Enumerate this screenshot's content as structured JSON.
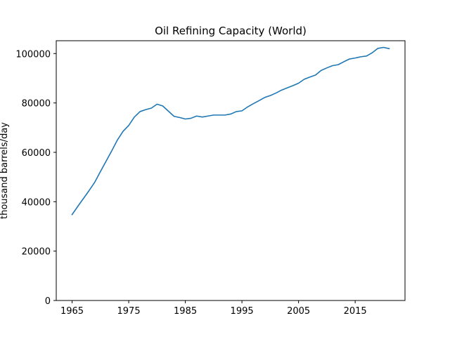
{
  "chart_data": {
    "type": "line",
    "title": "Oil Refining Capacity (World)",
    "xlabel": "",
    "ylabel": "thousand barrels/day",
    "xlim": [
      1962.2,
      2023.8
    ],
    "ylim": [
      0,
      105200
    ],
    "x_ticks": [
      1965,
      1975,
      1985,
      1995,
      2005,
      2015
    ],
    "y_ticks": [
      0,
      20000,
      40000,
      60000,
      80000,
      100000
    ],
    "grid": false,
    "line_color": "#1f77b4",
    "series": [
      {
        "x": [
          1965,
          1966,
          1967,
          1968,
          1969,
          1970,
          1971,
          1972,
          1973,
          1974,
          1975,
          1976,
          1977,
          1978,
          1979,
          1980,
          1981,
          1982,
          1983,
          1984,
          1985,
          1986,
          1987,
          1988,
          1989,
          1990,
          1991,
          1992,
          1993,
          1994,
          1995,
          1996,
          1997,
          1998,
          1999,
          2000,
          2001,
          2002,
          2003,
          2004,
          2005,
          2006,
          2007,
          2008,
          2009,
          2010,
          2011,
          2012,
          2013,
          2014,
          2015,
          2016,
          2017,
          2018,
          2019,
          2020,
          2021
        ],
        "values": [
          34800,
          38100,
          41300,
          44500,
          47900,
          52200,
          56400,
          60600,
          65000,
          68500,
          70900,
          74300,
          76500,
          77300,
          77900,
          79500,
          78800,
          76700,
          74600,
          74100,
          73500,
          73800,
          74700,
          74300,
          74700,
          75100,
          75100,
          75100,
          75500,
          76500,
          76800,
          78400,
          79700,
          80900,
          82200,
          83000,
          84000,
          85200,
          86100,
          87000,
          88000,
          89600,
          90500,
          91300,
          93200,
          94200,
          95100,
          95500,
          96700,
          97800,
          98200,
          98700,
          99000,
          100300,
          102100,
          102500,
          102000
        ]
      }
    ]
  }
}
